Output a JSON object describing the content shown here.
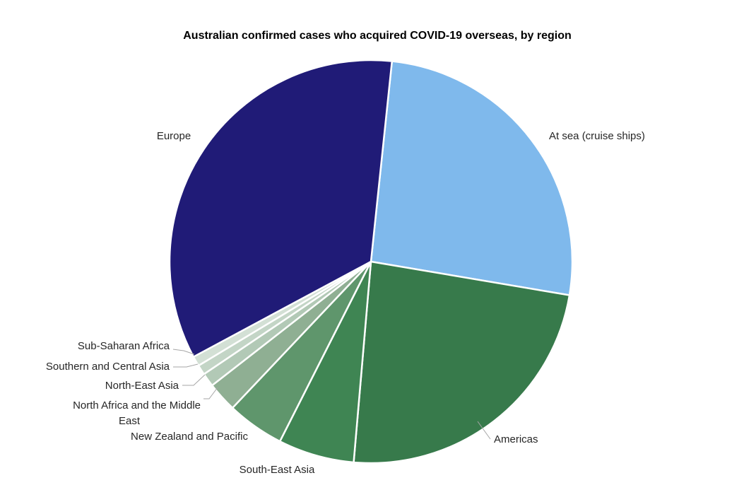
{
  "chart_data": {
    "type": "pie",
    "title": "Australian confirmed cases who acquired COVID-19 overseas, by region",
    "slices": [
      {
        "name": "At sea (cruise ships)",
        "value": 26.0,
        "color": "#7fb9ec"
      },
      {
        "name": "Americas",
        "value": 23.7,
        "color": "#377a4b"
      },
      {
        "name": "South-East Asia",
        "value": 6.1,
        "color": "#3f8553"
      },
      {
        "name": "New Zealand and Pacific",
        "value": 4.6,
        "color": "#5f966c"
      },
      {
        "name": "North Africa and the Middle East",
        "value": 2.4,
        "color": "#8faf93"
      },
      {
        "name": "North-East Asia",
        "value": 1.1,
        "color": "#b2c9b6"
      },
      {
        "name": "Southern and Central Asia",
        "value": 0.8,
        "color": "#c3d5c6"
      },
      {
        "name": "Sub-Saharan Africa",
        "value": 0.8,
        "color": "#d3e0d5"
      },
      {
        "name": "Europe",
        "value": 34.5,
        "color": "#201b77"
      }
    ],
    "legend": "none",
    "data_labels": "category names"
  }
}
